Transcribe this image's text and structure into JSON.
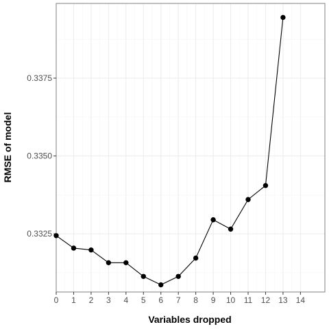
{
  "chart_data": {
    "type": "line",
    "title": "",
    "xlabel": "Variables dropped",
    "ylabel": "RMSE of model",
    "x": [
      0,
      1,
      2,
      3,
      4,
      5,
      6,
      7,
      8,
      9,
      10,
      11,
      12,
      13
    ],
    "y": [
      0.33244,
      0.33204,
      0.33198,
      0.33157,
      0.33157,
      0.33113,
      0.33086,
      0.33113,
      0.33172,
      0.33295,
      0.33265,
      0.3336,
      0.33405,
      0.33945
    ],
    "xlim": [
      0,
      15.4
    ],
    "ylim": [
      0.33063,
      0.3399
    ],
    "xticks": [
      0,
      1,
      2,
      3,
      4,
      5,
      6,
      7,
      8,
      9,
      10,
      11,
      12,
      13,
      14
    ],
    "yticks": [
      0.3325,
      0.335,
      0.3375
    ],
    "ytick_labels": [
      "0.3325",
      "0.3350",
      "0.3375"
    ],
    "grid": true,
    "legend": "none",
    "colors": {
      "line": "#000000",
      "point": "#000000",
      "panel_border": "#7f7f7f",
      "grid": "#ebebeb"
    }
  }
}
